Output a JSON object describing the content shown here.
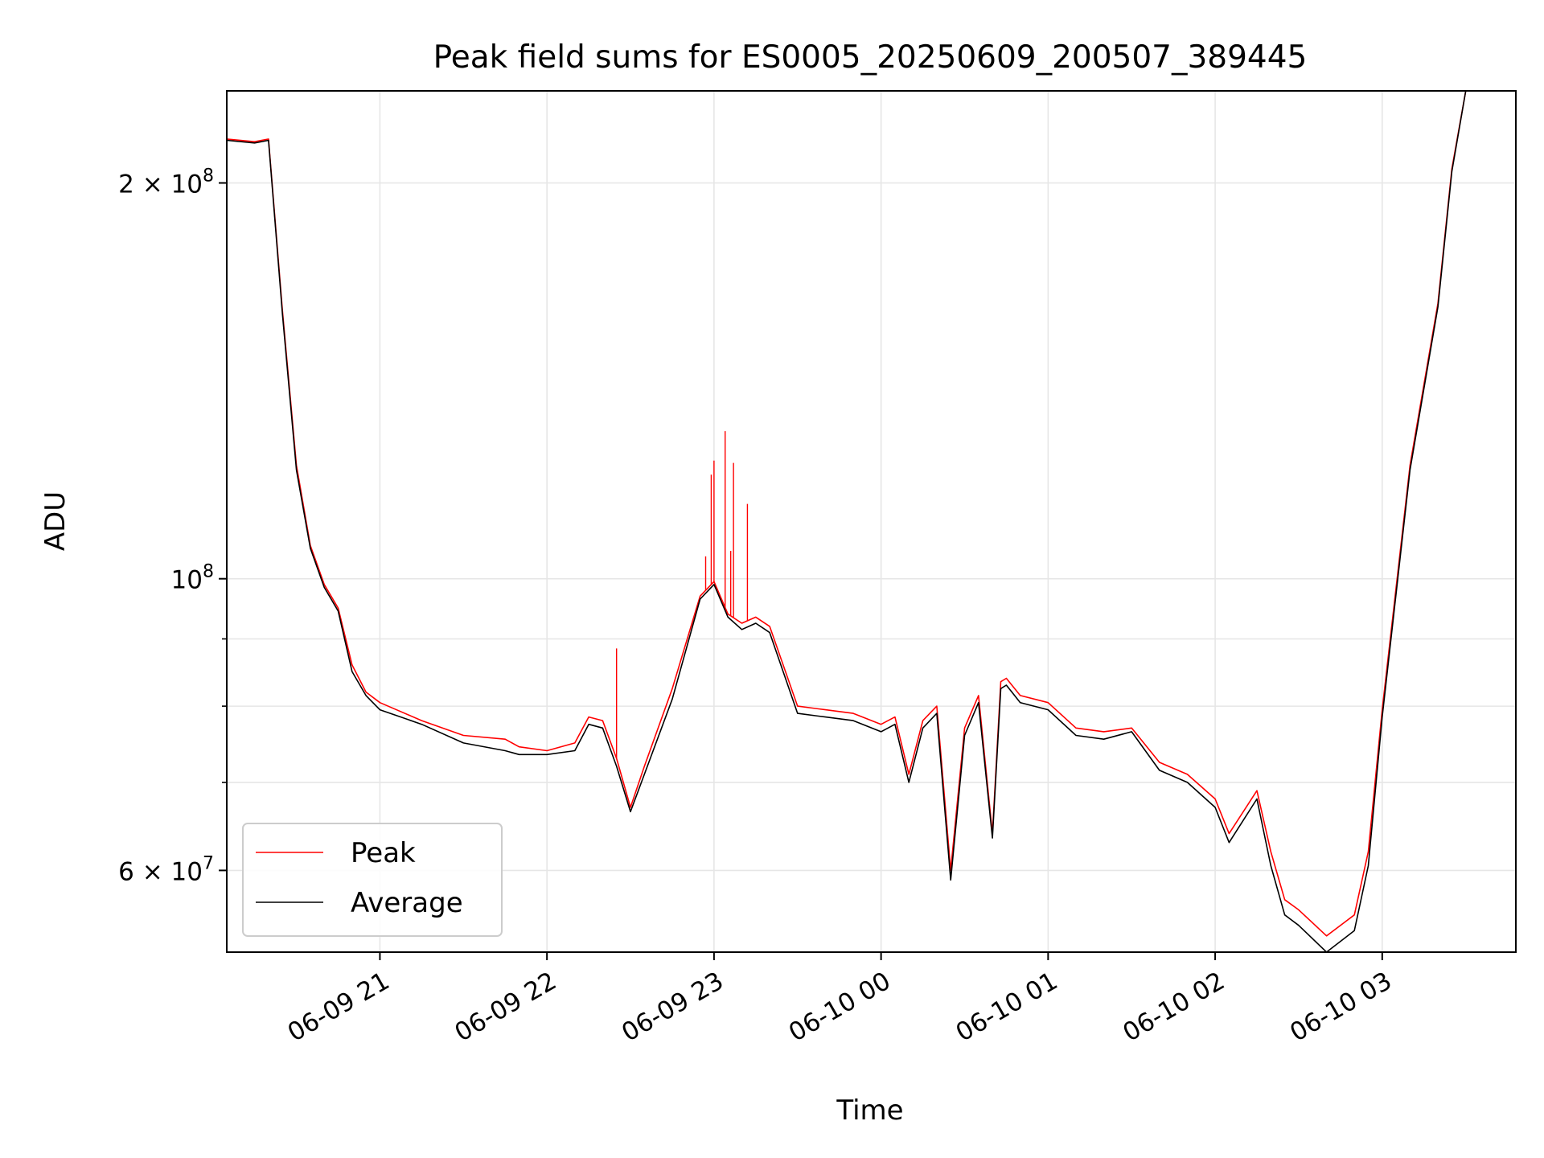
{
  "chart_data": {
    "type": "line",
    "title": "Peak field sums for ES0005_20250609_200507_389445",
    "xlabel": "Time",
    "ylabel": "ADU",
    "yscale": "log",
    "ylim": [
      52000000,
      235000000
    ],
    "xlim": [
      "2025-06-09 20:05",
      "2025-06-10 03:48"
    ],
    "grid": true,
    "legend_position": "lower-left",
    "x_ticks": [
      {
        "t": "2025-06-09 21:00",
        "label": "06-09 21"
      },
      {
        "t": "2025-06-09 22:00",
        "label": "06-09 22"
      },
      {
        "t": "2025-06-09 23:00",
        "label": "06-09 23"
      },
      {
        "t": "2025-06-10 00:00",
        "label": "06-10 00"
      },
      {
        "t": "2025-06-10 01:00",
        "label": "06-10 01"
      },
      {
        "t": "2025-06-10 02:00",
        "label": "06-10 02"
      },
      {
        "t": "2025-06-10 03:00",
        "label": "06-10 03"
      }
    ],
    "y_ticks_major": [
      {
        "value": 200000000,
        "base": "2 × 10",
        "exp": "8"
      },
      {
        "value": 100000000,
        "base": "10",
        "exp": "8"
      },
      {
        "value": 60000000,
        "base": "6 × 10",
        "exp": "7"
      }
    ],
    "y_ticks_minor": [
      70000000,
      80000000,
      90000000
    ],
    "series": [
      {
        "name": "Peak",
        "color": "#ff0000",
        "x": [
          "2025-06-09 20:05",
          "2025-06-09 20:15",
          "2025-06-09 20:20",
          "2025-06-09 20:25",
          "2025-06-09 20:30",
          "2025-06-09 20:35",
          "2025-06-09 20:40",
          "2025-06-09 20:45",
          "2025-06-09 20:50",
          "2025-06-09 20:55",
          "2025-06-09 21:00",
          "2025-06-09 21:15",
          "2025-06-09 21:30",
          "2025-06-09 21:45",
          "2025-06-09 21:50",
          "2025-06-09 22:00",
          "2025-06-09 22:10",
          "2025-06-09 22:15",
          "2025-06-09 22:20",
          "2025-06-09 22:25",
          "2025-06-09 22:30",
          "2025-06-09 22:35",
          "2025-06-09 22:45",
          "2025-06-09 22:55",
          "2025-06-09 23:00",
          "2025-06-09 23:05",
          "2025-06-09 23:10",
          "2025-06-09 23:15",
          "2025-06-09 23:20",
          "2025-06-09 23:30",
          "2025-06-09 23:40",
          "2025-06-09 23:50",
          "2025-06-10 00:00",
          "2025-06-10 00:05",
          "2025-06-10 00:10",
          "2025-06-10 00:15",
          "2025-06-10 00:20",
          "2025-06-10 00:25",
          "2025-06-10 00:30",
          "2025-06-10 00:35",
          "2025-06-10 00:40",
          "2025-06-10 00:43",
          "2025-06-10 00:45",
          "2025-06-10 00:47",
          "2025-06-10 00:50",
          "2025-06-10 01:00",
          "2025-06-10 01:10",
          "2025-06-10 01:20",
          "2025-06-10 01:30",
          "2025-06-10 01:40",
          "2025-06-10 01:50",
          "2025-06-10 02:00",
          "2025-06-10 02:05",
          "2025-06-10 02:15",
          "2025-06-10 02:20",
          "2025-06-10 02:25",
          "2025-06-10 02:30",
          "2025-06-10 02:40",
          "2025-06-10 02:50",
          "2025-06-10 02:55",
          "2025-06-10 03:00",
          "2025-06-10 03:10",
          "2025-06-10 03:20",
          "2025-06-10 03:25",
          "2025-06-10 03:30"
        ],
        "values": [
          216000000,
          215000000,
          216000000,
          160000000,
          122000000,
          106000000,
          99000000,
          95000000,
          86000000,
          82000000,
          80500000,
          78000000,
          76000000,
          75500000,
          74500000,
          74000000,
          75000000,
          78500000,
          78000000,
          73000000,
          67000000,
          72000000,
          82500000,
          97000000,
          99500000,
          94000000,
          92500000,
          93500000,
          92000000,
          80000000,
          79500000,
          79000000,
          77500000,
          78500000,
          71000000,
          78000000,
          80000000,
          60000000,
          77000000,
          81500000,
          64000000,
          83500000,
          84000000,
          83000000,
          81500000,
          80500000,
          77000000,
          76500000,
          77000000,
          72500000,
          71000000,
          68000000,
          64000000,
          69000000,
          62000000,
          57000000,
          56000000,
          53500000,
          55500000,
          62000000,
          79500000,
          122000000,
          162000000,
          205000000,
          235000000
        ],
        "spikes": [
          {
            "t": "2025-06-09 22:25",
            "value": 88500000
          },
          {
            "t": "2025-06-09 22:57",
            "value": 104000000
          },
          {
            "t": "2025-06-09 22:59",
            "value": 120000000
          },
          {
            "t": "2025-06-09 23:00",
            "value": 123000000
          },
          {
            "t": "2025-06-09 23:04",
            "value": 129500000
          },
          {
            "t": "2025-06-09 23:06",
            "value": 105000000
          },
          {
            "t": "2025-06-09 23:07",
            "value": 122500000
          },
          {
            "t": "2025-06-09 23:12",
            "value": 114000000
          }
        ]
      },
      {
        "name": "Average",
        "color": "#000000",
        "x": [
          "2025-06-09 20:05",
          "2025-06-09 20:15",
          "2025-06-09 20:20",
          "2025-06-09 20:25",
          "2025-06-09 20:30",
          "2025-06-09 20:35",
          "2025-06-09 20:40",
          "2025-06-09 20:45",
          "2025-06-09 20:50",
          "2025-06-09 20:55",
          "2025-06-09 21:00",
          "2025-06-09 21:15",
          "2025-06-09 21:30",
          "2025-06-09 21:45",
          "2025-06-09 21:50",
          "2025-06-09 22:00",
          "2025-06-09 22:10",
          "2025-06-09 22:15",
          "2025-06-09 22:20",
          "2025-06-09 22:25",
          "2025-06-09 22:30",
          "2025-06-09 22:35",
          "2025-06-09 22:45",
          "2025-06-09 22:55",
          "2025-06-09 23:00",
          "2025-06-09 23:05",
          "2025-06-09 23:10",
          "2025-06-09 23:15",
          "2025-06-09 23:20",
          "2025-06-09 23:30",
          "2025-06-09 23:40",
          "2025-06-09 23:50",
          "2025-06-10 00:00",
          "2025-06-10 00:05",
          "2025-06-10 00:10",
          "2025-06-10 00:15",
          "2025-06-10 00:20",
          "2025-06-10 00:25",
          "2025-06-10 00:30",
          "2025-06-10 00:35",
          "2025-06-10 00:40",
          "2025-06-10 00:43",
          "2025-06-10 00:45",
          "2025-06-10 00:47",
          "2025-06-10 00:50",
          "2025-06-10 01:00",
          "2025-06-10 01:10",
          "2025-06-10 01:20",
          "2025-06-10 01:30",
          "2025-06-10 01:40",
          "2025-06-10 01:50",
          "2025-06-10 02:00",
          "2025-06-10 02:05",
          "2025-06-10 02:15",
          "2025-06-10 02:20",
          "2025-06-10 02:25",
          "2025-06-10 02:30",
          "2025-06-10 02:40",
          "2025-06-10 02:50",
          "2025-06-10 02:55",
          "2025-06-10 03:00",
          "2025-06-10 03:10",
          "2025-06-10 03:20",
          "2025-06-10 03:25",
          "2025-06-10 03:30"
        ],
        "values": [
          215500000,
          214500000,
          215500000,
          159000000,
          121000000,
          105500000,
          98500000,
          94500000,
          85000000,
          81500000,
          79500000,
          77500000,
          75000000,
          74000000,
          73500000,
          73500000,
          74000000,
          77500000,
          77000000,
          72000000,
          66500000,
          71000000,
          81000000,
          96500000,
          99000000,
          93500000,
          91500000,
          92500000,
          91000000,
          79000000,
          78500000,
          78000000,
          76500000,
          77500000,
          70000000,
          77000000,
          79000000,
          59000000,
          76000000,
          80500000,
          63500000,
          82500000,
          83000000,
          82000000,
          80500000,
          79500000,
          76000000,
          75500000,
          76500000,
          71500000,
          70000000,
          67000000,
          63000000,
          68000000,
          60500000,
          55500000,
          54500000,
          52000000,
          54000000,
          60500000,
          78500000,
          121000000,
          161000000,
          204000000,
          235000000
        ]
      }
    ]
  }
}
